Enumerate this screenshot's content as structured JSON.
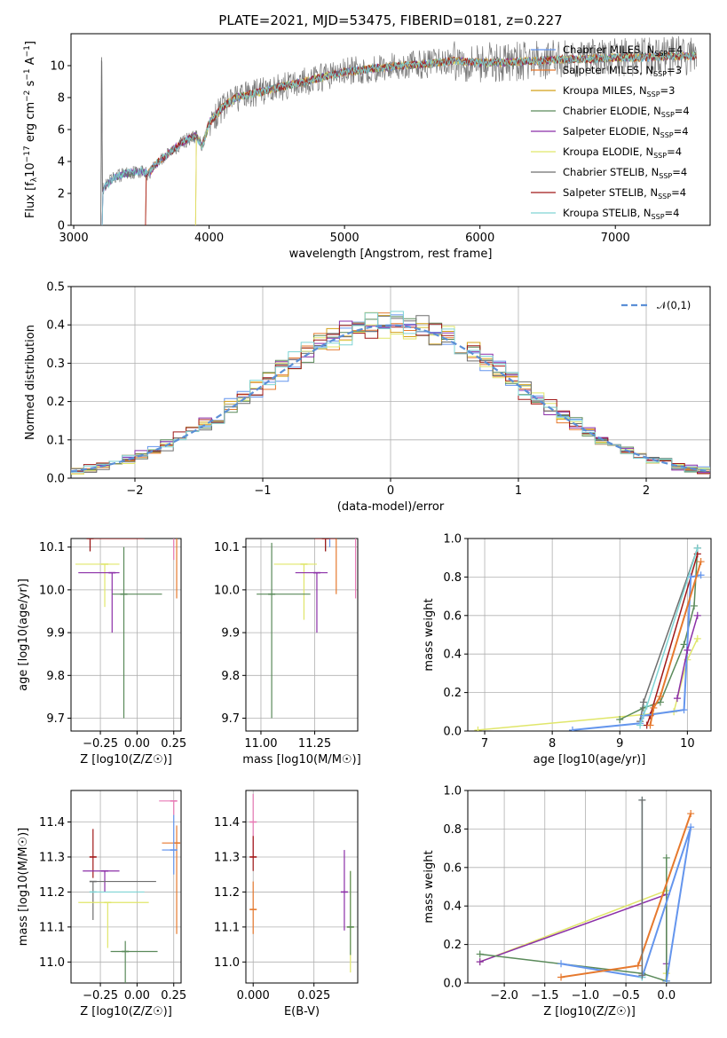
{
  "figure_title": "PLATE=2021, MJD=53475, FIBERID=0181, z=0.227",
  "colors": {
    "chabrier_miles": "#6495ed",
    "salpeter_miles": "#e6792e",
    "kroupa_miles": "#d4a017",
    "chabrier_elodie": "#5a8a5a",
    "salpeter_elodie": "#8b2fa8",
    "kroupa_elodie": "#e0e66a",
    "chabrier_stelib": "#6e6e6e",
    "salpeter_stelib": "#a01818",
    "kroupa_stelib": "#7fd4d4",
    "pink": "#e87ab5",
    "normal_curve": "#5b8fd6"
  },
  "chart_data": [
    {
      "id": "spectrum",
      "type": "line",
      "xlabel": "wavelength [Angstrom, rest frame]",
      "ylabel": "Flux [f_λ10^-17 erg cm^-2 s^-1 A^-1]",
      "xlim": [
        2980,
        7700
      ],
      "ylim": [
        0,
        12
      ],
      "xticks": [
        3000,
        4000,
        5000,
        6000,
        7000
      ],
      "yticks": [
        0,
        2,
        4,
        6,
        8,
        10
      ],
      "legend_position": "top-right",
      "legend": [
        "Chabrier MILES, N_SSP=4",
        "Salpeter MILES, N_SSP=3",
        "Kroupa MILES, N_SSP=3",
        "Chabrier ELODIE, N_SSP=4",
        "Salpeter ELODIE, N_SSP=4",
        "Kroupa ELODIE, N_SSP=4",
        "Chabrier STELIB, N_SSP=4",
        "Salpeter STELIB, N_SSP=4",
        "Kroupa STELIB, N_SSP=4"
      ],
      "series_colors": [
        "chabrier_miles",
        "salpeter_miles",
        "kroupa_miles",
        "chabrier_elodie",
        "salpeter_elodie",
        "kroupa_elodie",
        "chabrier_stelib",
        "salpeter_stelib",
        "kroupa_stelib"
      ],
      "model_continuum": {
        "x": [
          3210,
          3300,
          3400,
          3500,
          3550,
          3600,
          3700,
          3800,
          3900,
          3950,
          4000,
          4100,
          4200,
          4300,
          4400,
          4500,
          4600,
          4800,
          5000,
          5200,
          5400,
          5600,
          5800,
          6000,
          6200,
          6400,
          6600,
          6800,
          7000,
          7200,
          7400,
          7600
        ],
        "y": [
          2.2,
          3.0,
          3.3,
          3.4,
          3.2,
          3.8,
          4.5,
          5.2,
          5.6,
          5.0,
          6.4,
          7.4,
          8.0,
          8.2,
          8.4,
          8.6,
          8.8,
          9.2,
          9.6,
          9.8,
          10.0,
          10.1,
          10.3,
          10.2,
          10.2,
          10.3,
          10.4,
          10.4,
          10.5,
          10.5,
          10.6,
          10.6
        ]
      },
      "data_range": [
        3200,
        7600
      ],
      "series_start": [
        3210,
        3530,
        3900,
        3210,
        3210,
        3900,
        3200,
        3530,
        3210
      ]
    },
    {
      "id": "residuals",
      "type": "bar",
      "xlabel": "(data-model)/error",
      "ylabel": "Normed distribution",
      "xlim": [
        -2.5,
        2.5
      ],
      "ylim": [
        0,
        0.5
      ],
      "xticks": [
        -2,
        -1,
        0,
        1,
        2
      ],
      "yticks": [
        0.0,
        0.1,
        0.2,
        0.3,
        0.4,
        0.5
      ],
      "bin_width": 0.1,
      "legend": [
        "𝒩(0,1)"
      ],
      "legend_position": "top-right",
      "reference_curve": {
        "name": "𝒩(0,1)",
        "mean": 0,
        "sigma": 1
      }
    },
    {
      "id": "age_vs_Z",
      "type": "scatter",
      "xlabel": "Z [log10(Z/Z☉)]",
      "ylabel": "age [log10(age/yr)]",
      "xlim": [
        -0.45,
        0.3
      ],
      "ylim": [
        9.67,
        10.12
      ],
      "xticks": [
        -0.25,
        0.0,
        0.25
      ],
      "yticks": [
        9.7,
        9.8,
        9.9,
        10.0,
        10.1
      ],
      "points": [
        {
          "series": "chabrier_miles",
          "x": 0.25,
          "y": 10.13,
          "xerr": [
            0.25,
            0.0
          ],
          "yerr": [
            0.0,
            0.0
          ]
        },
        {
          "series": "salpeter_miles",
          "x": 0.27,
          "y": 10.13,
          "xerr": [
            0.1,
            0.02
          ],
          "yerr": [
            0.15,
            0.0
          ]
        },
        {
          "series": "kroupa_elodie",
          "x": -0.22,
          "y": 10.06,
          "xerr": [
            0.2,
            0.1
          ],
          "yerr": [
            0.1,
            0.0
          ]
        },
        {
          "series": "salpeter_elodie",
          "x": -0.17,
          "y": 10.04,
          "xerr": [
            0.23,
            0.05
          ],
          "yerr": [
            0.14,
            0.0
          ]
        },
        {
          "series": "chabrier_elodie",
          "x": -0.09,
          "y": 9.99,
          "xerr": [
            0.08,
            0.26
          ],
          "yerr": [
            0.29,
            0.11
          ]
        },
        {
          "series": "chabrier_stelib",
          "x": -0.32,
          "y": 10.16,
          "xerr": [
            0.0,
            0.43
          ],
          "yerr": [
            0.07,
            0.0
          ]
        },
        {
          "series": "salpeter_stelib",
          "x": -0.32,
          "y": 10.12,
          "xerr": [
            0.0,
            0.37
          ],
          "yerr": [
            0.03,
            0.0
          ]
        },
        {
          "series": "kroupa_stelib",
          "x": -0.3,
          "y": 10.16,
          "xerr": [
            0.0,
            0.22
          ],
          "yerr": [
            0.0,
            0.0
          ]
        },
        {
          "series": "pink",
          "x": 0.25,
          "y": 10.13,
          "xerr": [
            0.1,
            0.02
          ],
          "yerr": [
            0.06,
            0.0
          ]
        }
      ]
    },
    {
      "id": "age_vs_mass",
      "type": "scatter",
      "xlabel": "mass [log10(M/M☉)]",
      "ylabel": "",
      "xlim": [
        10.93,
        11.45
      ],
      "ylim": [
        9.67,
        10.12
      ],
      "xticks": [
        11.0,
        11.25
      ],
      "yticks": [
        9.7,
        9.8,
        9.9,
        10.0,
        10.1
      ],
      "points": [
        {
          "series": "chabrier_miles",
          "x": 11.32,
          "y": 10.16,
          "xerr": [
            0.05,
            0.0
          ],
          "yerr": [
            0.06,
            0.0
          ]
        },
        {
          "series": "salpeter_miles",
          "x": 11.35,
          "y": 10.13,
          "xerr": [
            0.12,
            0.03
          ],
          "yerr": [
            0.14,
            0.0
          ]
        },
        {
          "series": "kroupa_elodie",
          "x": 11.2,
          "y": 10.06,
          "xerr": [
            0.14,
            0.06
          ],
          "yerr": [
            0.13,
            0.0
          ]
        },
        {
          "series": "salpeter_elodie",
          "x": 11.26,
          "y": 10.04,
          "xerr": [
            0.1,
            0.05
          ],
          "yerr": [
            0.14,
            0.0
          ]
        },
        {
          "series": "chabrier_elodie",
          "x": 11.05,
          "y": 9.99,
          "xerr": [
            0.07,
            0.18
          ],
          "yerr": [
            0.29,
            0.12
          ]
        },
        {
          "series": "chabrier_stelib",
          "x": 11.3,
          "y": 10.16,
          "xerr": [
            0.0,
            0.06
          ],
          "yerr": [
            0.07,
            0.0
          ]
        },
        {
          "series": "salpeter_stelib",
          "x": 11.3,
          "y": 10.12,
          "xerr": [
            0.05,
            0.05
          ],
          "yerr": [
            0.03,
            0.0
          ]
        },
        {
          "series": "kroupa_stelib",
          "x": 11.24,
          "y": 10.16,
          "xerr": [
            0.07,
            0.0
          ],
          "yerr": [
            0.0,
            0.0
          ]
        },
        {
          "series": "pink",
          "x": 11.44,
          "y": 10.13,
          "xerr": [
            0.06,
            0.0
          ],
          "yerr": [
            0.15,
            0.0
          ]
        }
      ]
    },
    {
      "id": "weight_vs_age",
      "type": "line",
      "xlabel": "age [log10(age/yr)]",
      "ylabel": "mass weight",
      "xlim": [
        6.75,
        10.35
      ],
      "ylim": [
        0,
        1
      ],
      "xticks": [
        7,
        8,
        9,
        10
      ],
      "yticks": [
        0.0,
        0.2,
        0.4,
        0.6,
        0.8,
        1.0
      ],
      "series": [
        {
          "color": "kroupa_elodie",
          "x": [
            6.9,
            9.8,
            10.0,
            10.15
          ],
          "y": [
            0.005,
            0.1,
            0.37,
            0.48
          ]
        },
        {
          "color": "chabrier_elodie",
          "x": [
            9.0,
            9.35,
            9.6,
            9.95,
            10.1,
            10.15
          ],
          "y": [
            0.06,
            0.12,
            0.15,
            0.45,
            0.65,
            0.95
          ]
        },
        {
          "color": "chabrier_stelib",
          "x": [
            9.3,
            9.35,
            10.15
          ],
          "y": [
            0.05,
            0.15,
            0.95
          ]
        },
        {
          "color": "salpeter_stelib",
          "x": [
            9.4,
            9.45,
            10.15
          ],
          "y": [
            0.03,
            0.08,
            0.92
          ]
        },
        {
          "color": "chabrier_miles",
          "x": [
            8.3,
            9.3,
            9.35,
            9.95,
            10.05,
            10.2
          ],
          "y": [
            0.005,
            0.04,
            0.08,
            0.11,
            0.8,
            0.81
          ]
        },
        {
          "color": "salpeter_miles",
          "x": [
            9.45,
            9.5,
            9.6,
            10.2
          ],
          "y": [
            0.03,
            0.12,
            0.18,
            0.88
          ]
        },
        {
          "color": "salpeter_elodie",
          "x": [
            9.85,
            10.0,
            10.15
          ],
          "y": [
            0.17,
            0.42,
            0.6
          ]
        },
        {
          "color": "kroupa_stelib",
          "x": [
            9.3,
            9.4,
            10.15
          ],
          "y": [
            0.03,
            0.13,
            0.95
          ]
        }
      ]
    },
    {
      "id": "mass_vs_Z",
      "type": "scatter",
      "xlabel": "Z [log10(Z/Z☉)]",
      "ylabel": "mass [log10(M/M☉)]",
      "xlim": [
        -0.45,
        0.3
      ],
      "ylim": [
        10.94,
        11.49
      ],
      "xticks": [
        -0.25,
        0.0,
        0.25
      ],
      "yticks": [
        11.0,
        11.1,
        11.2,
        11.3,
        11.4
      ],
      "points": [
        {
          "series": "pink",
          "x": 0.25,
          "y": 11.46,
          "xerr": [
            0.1,
            0.02
          ],
          "yerr": [
            0.04,
            0.0
          ]
        },
        {
          "series": "salpeter_miles",
          "x": 0.27,
          "y": 11.34,
          "xerr": [
            0.1,
            0.02
          ],
          "yerr": [
            0.26,
            0.05
          ]
        },
        {
          "series": "chabrier_miles",
          "x": 0.25,
          "y": 11.32,
          "xerr": [
            0.08,
            0.0
          ],
          "yerr": [
            0.07,
            0.1
          ]
        },
        {
          "series": "salpeter_stelib",
          "x": -0.3,
          "y": 11.3,
          "xerr": [
            0.0,
            0.0
          ],
          "yerr": [
            0.06,
            0.08
          ]
        },
        {
          "series": "salpeter_elodie",
          "x": -0.22,
          "y": 11.26,
          "xerr": [
            0.15,
            0.1
          ],
          "yerr": [
            0.06,
            0.0
          ]
        },
        {
          "series": "chabrier_stelib",
          "x": -0.3,
          "y": 11.23,
          "xerr": [
            0.0,
            0.43
          ],
          "yerr": [
            0.11,
            0.0
          ]
        },
        {
          "series": "kroupa_stelib",
          "x": -0.3,
          "y": 11.2,
          "xerr": [
            0.0,
            0.35
          ],
          "yerr": [
            0.0,
            0.0
          ]
        },
        {
          "series": "kroupa_elodie",
          "x": -0.2,
          "y": 11.17,
          "xerr": [
            0.2,
            0.28
          ],
          "yerr": [
            0.13,
            0.0
          ]
        },
        {
          "series": "chabrier_elodie",
          "x": -0.08,
          "y": 11.03,
          "xerr": [
            0.1,
            0.22
          ],
          "yerr": [
            0.12,
            0.03
          ]
        }
      ]
    },
    {
      "id": "mass_vs_ebv",
      "type": "scatter",
      "xlabel": "E(B-V)",
      "ylabel": "",
      "xlim": [
        -0.003,
        0.043
      ],
      "ylim": [
        10.94,
        11.49
      ],
      "xticks": [
        0.0,
        0.025
      ],
      "xtick_labels": [
        "0.000",
        "0.025"
      ],
      "yticks": [
        11.0,
        11.1,
        11.2,
        11.3,
        11.4
      ],
      "points": [
        {
          "series": "pink",
          "x": 0.0,
          "y": 11.4,
          "yerr": [
            0.1,
            0.08
          ]
        },
        {
          "series": "salpeter_stelib",
          "x": 0.0,
          "y": 11.3,
          "yerr": [
            0.04,
            0.06
          ]
        },
        {
          "series": "salpeter_miles",
          "x": 0.0,
          "y": 11.15,
          "yerr": [
            0.07,
            0.08
          ]
        },
        {
          "series": "salpeter_elodie",
          "x": 0.0375,
          "y": 11.2,
          "yerr": [
            0.11,
            0.12
          ]
        },
        {
          "series": "kroupa_elodie",
          "x": 0.04,
          "y": 11.1,
          "yerr": [
            0.13,
            0.16
          ]
        },
        {
          "series": "chabrier_elodie",
          "x": 0.04,
          "y": 11.1,
          "yerr": [
            0.08,
            0.16
          ]
        }
      ]
    },
    {
      "id": "weight_vs_Z",
      "type": "line",
      "xlabel": "Z [log10(Z/Z☉)]",
      "ylabel": "mass weight",
      "xlim": [
        -2.45,
        0.55
      ],
      "ylim": [
        0,
        1
      ],
      "xticks": [
        -2.0,
        -1.5,
        -1.0,
        -0.5,
        0.0
      ],
      "yticks": [
        0.0,
        0.2,
        0.4,
        0.6,
        0.8,
        1.0
      ],
      "series": [
        {
          "color": "kroupa_elodie",
          "x": [
            -2.3,
            0.0,
            0.0,
            -0.01
          ],
          "y": [
            0.11,
            0.48,
            0.05,
            0.01
          ]
        },
        {
          "color": "salpeter_elodie",
          "x": [
            -2.3,
            0.0,
            0.0
          ],
          "y": [
            0.11,
            0.46,
            0.1
          ]
        },
        {
          "color": "chabrier_elodie",
          "x": [
            -2.3,
            -0.3,
            0.0,
            0.0
          ],
          "y": [
            0.15,
            0.05,
            0.01,
            0.65
          ]
        },
        {
          "color": "chabrier_miles",
          "x": [
            -1.3,
            -0.3,
            0.3,
            0.0
          ],
          "y": [
            0.1,
            0.03,
            0.81,
            0.01
          ]
        },
        {
          "color": "salpeter_miles",
          "x": [
            -1.3,
            -0.35,
            0.3
          ],
          "y": [
            0.03,
            0.09,
            0.88
          ]
        },
        {
          "color": "kroupa_stelib",
          "x": [
            -0.3,
            -0.3
          ],
          "y": [
            0.95,
            0.03
          ]
        },
        {
          "color": "chabrier_stelib",
          "x": [
            -0.3,
            -0.3
          ],
          "y": [
            0.95,
            0.04
          ]
        }
      ]
    }
  ]
}
